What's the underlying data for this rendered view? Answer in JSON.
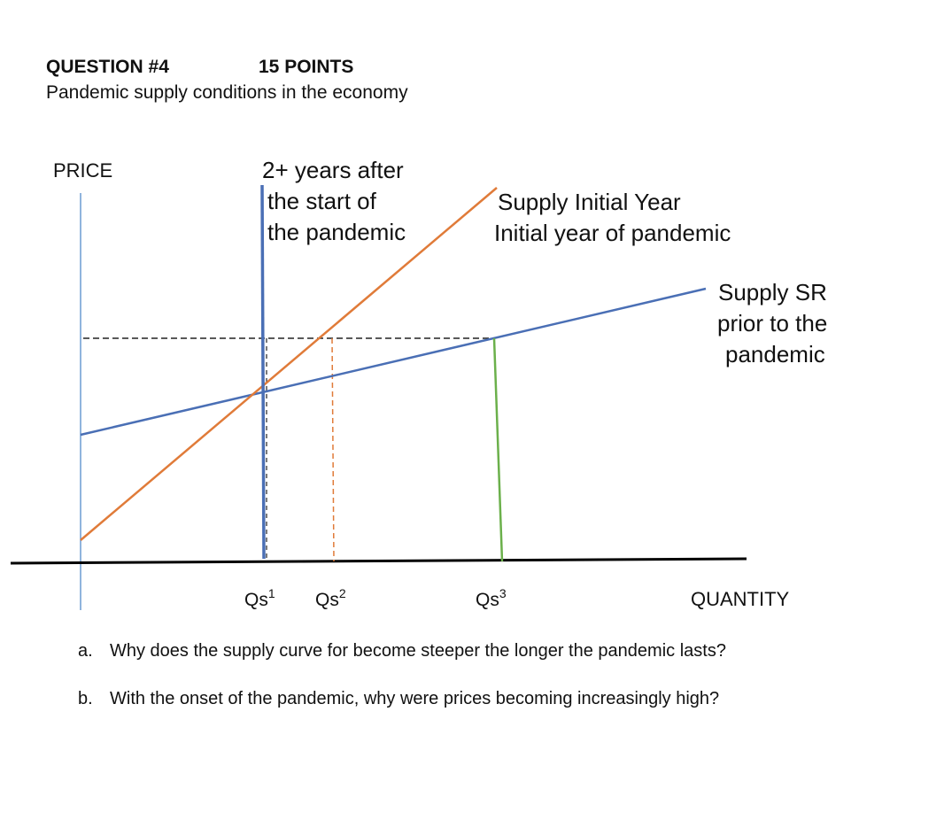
{
  "header": {
    "question_number": "QUESTION #4",
    "points": "15 POINTS",
    "subtitle": "Pandemic supply conditions in the economy"
  },
  "diagram": {
    "y_axis_label": "PRICE",
    "x_axis_label": "QUANTITY",
    "curve_labels": {
      "vertical_supply": [
        "2+ years after",
        "the start of",
        "the pandemic"
      ],
      "initial_year": [
        "Supply Initial Year",
        "Initial year of pandemic"
      ],
      "short_run": [
        "Supply SR",
        "prior to the",
        "pandemic"
      ]
    },
    "quantity_marks": {
      "qs1": {
        "base": "Qs",
        "sup": "1"
      },
      "qs2": {
        "base": "Qs",
        "sup": "2"
      },
      "qs3": {
        "base": "Qs",
        "sup": "3"
      }
    },
    "colors": {
      "short_run_supply": "#4a6fb5",
      "initial_year_supply": "#e07b39",
      "vertical_supply": "#4a6fb5",
      "qs3_drop_line": "#6bb04b",
      "price_axis": "#6b9bd2",
      "quantity_axis": "#000000"
    }
  },
  "questions": [
    {
      "marker": "a.",
      "text": "Why does the supply curve for become steeper the longer the pandemic lasts?"
    },
    {
      "marker": "b.",
      "text": "With the onset of the pandemic, why were prices becoming increasingly high?"
    }
  ]
}
